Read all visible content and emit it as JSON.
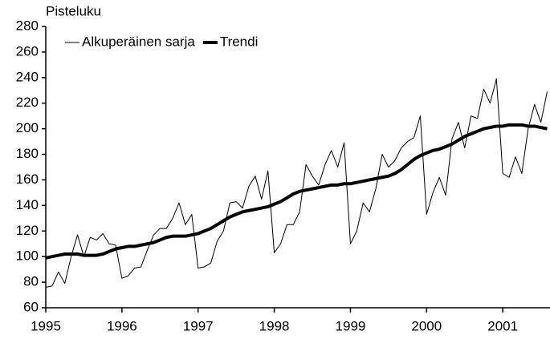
{
  "chart_data": {
    "type": "line",
    "ylabel": "Pisteluku",
    "x": [
      1995,
      1995.083,
      1995.167,
      1995.25,
      1995.333,
      1995.417,
      1995.5,
      1995.583,
      1995.667,
      1995.75,
      1995.833,
      1995.917,
      1996,
      1996.083,
      1996.167,
      1996.25,
      1996.333,
      1996.417,
      1996.5,
      1996.583,
      1996.667,
      1996.75,
      1996.833,
      1996.917,
      1997,
      1997.083,
      1997.167,
      1997.25,
      1997.333,
      1997.417,
      1997.5,
      1997.583,
      1997.667,
      1997.75,
      1997.833,
      1997.917,
      1998,
      1998.083,
      1998.167,
      1998.25,
      1998.333,
      1998.417,
      1998.5,
      1998.583,
      1998.667,
      1998.75,
      1998.833,
      1998.917,
      1999,
      1999.083,
      1999.167,
      1999.25,
      1999.333,
      1999.417,
      1999.5,
      1999.583,
      1999.667,
      1999.75,
      1999.833,
      1999.917,
      2000,
      2000.083,
      2000.167,
      2000.25,
      2000.333,
      2000.417,
      2000.5,
      2000.583,
      2000.667,
      2000.75,
      2000.833,
      2000.917,
      2001,
      2001.083,
      2001.167,
      2001.25,
      2001.333,
      2001.417,
      2001.5,
      2001.583
    ],
    "series": [
      {
        "name": "Alkuperäinen sarja",
        "color": "#000000",
        "line_width": 1,
        "values": [
          76,
          77,
          88,
          79,
          100,
          117,
          100,
          115,
          113,
          118,
          110,
          109,
          83,
          85,
          91,
          92,
          105,
          117,
          122,
          122,
          130,
          142,
          125,
          133,
          91,
          92,
          95,
          112,
          120,
          142,
          143,
          138,
          155,
          163,
          145,
          167,
          103,
          110,
          125,
          125,
          135,
          172,
          163,
          156,
          172,
          183,
          170,
          189,
          110,
          120,
          142,
          135,
          153,
          180,
          170,
          175,
          185,
          190,
          193,
          210,
          133,
          150,
          162,
          148,
          192,
          205,
          185,
          210,
          208,
          231,
          220,
          239,
          165,
          162,
          178,
          165,
          200,
          219,
          205,
          229
        ]
      },
      {
        "name": "Trendi",
        "color": "#000000",
        "line_width": 4,
        "values": [
          99,
          100,
          101,
          102,
          102,
          102,
          101,
          101,
          101,
          102,
          104,
          106,
          107,
          108,
          108,
          109,
          110,
          111,
          113,
          115,
          116,
          116,
          116,
          117,
          118,
          120,
          122,
          125,
          128,
          131,
          133,
          135,
          136,
          137,
          138,
          139,
          141,
          143,
          146,
          149,
          151,
          152,
          153,
          154,
          155,
          156,
          156,
          157,
          157,
          158,
          159,
          160,
          161,
          162,
          163,
          165,
          168,
          172,
          176,
          179,
          181,
          183,
          184,
          186,
          188,
          191,
          194,
          196,
          198,
          200,
          201,
          202,
          202,
          203,
          203,
          203,
          202,
          202,
          201,
          200
        ]
      }
    ],
    "xlim": [
      1995,
      2001.62
    ],
    "xticks": [
      1995,
      1996,
      1997,
      1998,
      1999,
      2000,
      2001
    ],
    "ylim": [
      60,
      280
    ],
    "yticks": [
      60,
      80,
      100,
      120,
      140,
      160,
      180,
      200,
      220,
      240,
      260,
      280
    ],
    "grid": false,
    "legend": "upper left"
  }
}
